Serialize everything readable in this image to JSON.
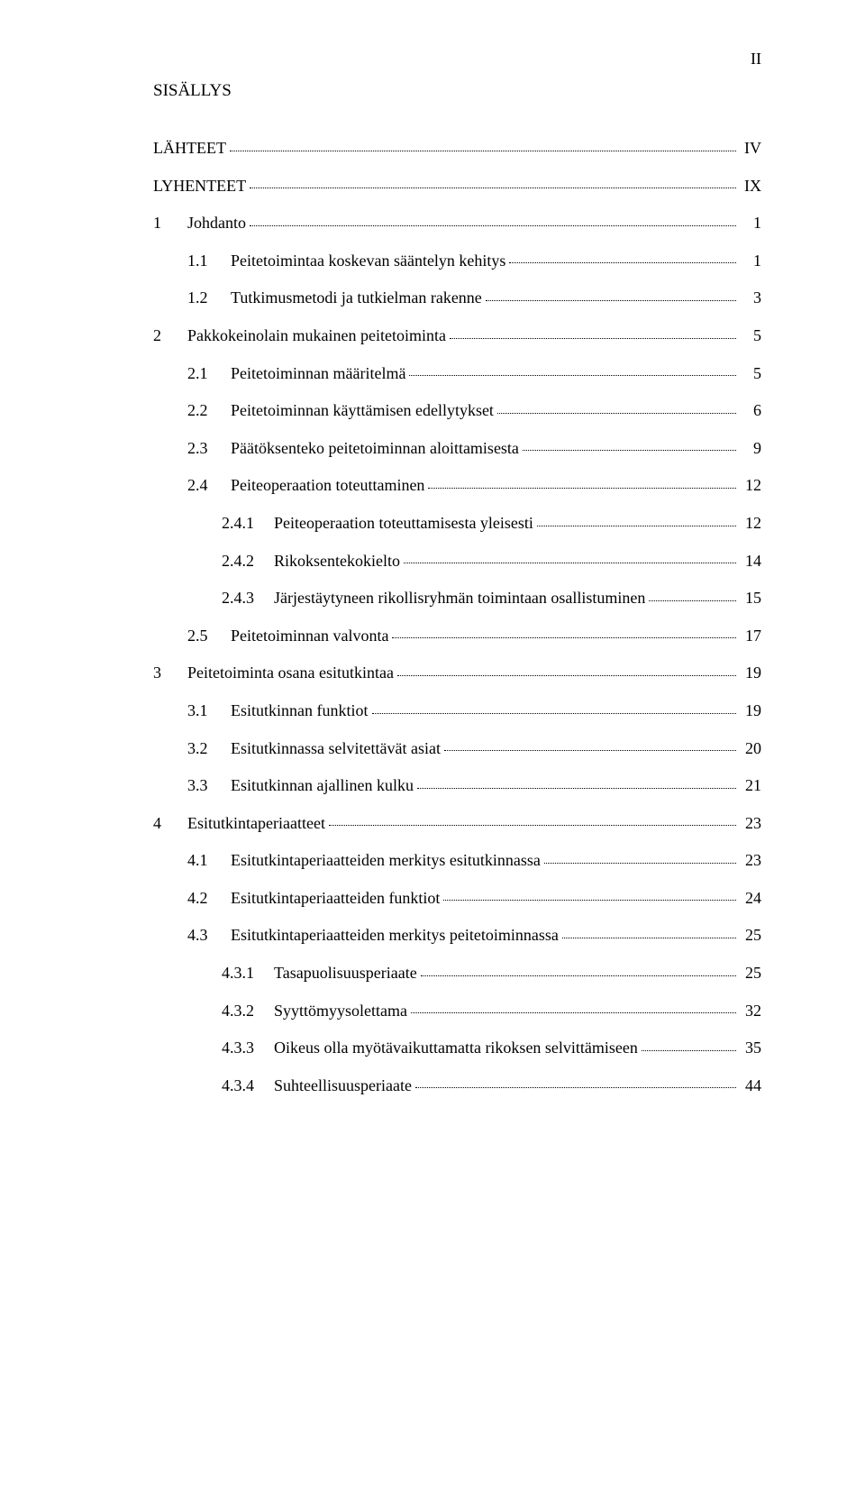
{
  "page_number_label": "II",
  "heading": "SISÄLLYS",
  "entries": [
    {
      "indent": 0,
      "num": "",
      "numClass": "",
      "label": "LÄHTEET",
      "page": "IV"
    },
    {
      "indent": 0,
      "num": "",
      "numClass": "",
      "label": "LYHENTEET",
      "page": "IX"
    },
    {
      "indent": 0,
      "num": "1",
      "numClass": "num-w1",
      "label": "Johdanto",
      "page": "1"
    },
    {
      "indent": 1,
      "num": "1.1",
      "numClass": "num-w2",
      "label": "Peitetoimintaa koskevan sääntelyn kehitys",
      "page": "1"
    },
    {
      "indent": 1,
      "num": "1.2",
      "numClass": "num-w2",
      "label": "Tutkimusmetodi ja tutkielman rakenne",
      "page": "3"
    },
    {
      "indent": 0,
      "num": "2",
      "numClass": "num-w1",
      "label": "Pakkokeinolain mukainen peitetoiminta",
      "page": "5"
    },
    {
      "indent": 1,
      "num": "2.1",
      "numClass": "num-w2",
      "label": "Peitetoiminnan määritelmä",
      "page": "5"
    },
    {
      "indent": 1,
      "num": "2.2",
      "numClass": "num-w2",
      "label": "Peitetoiminnan käyttämisen edellytykset",
      "page": "6"
    },
    {
      "indent": 1,
      "num": "2.3",
      "numClass": "num-w2",
      "label": "Päätöksenteko peitetoiminnan aloittamisesta",
      "page": "9"
    },
    {
      "indent": 1,
      "num": "2.4",
      "numClass": "num-w2",
      "label": "Peiteoperaation toteuttaminen",
      "page": "12"
    },
    {
      "indent": 2,
      "num": "2.4.1",
      "numClass": "num-w3",
      "label": "Peiteoperaation toteuttamisesta yleisesti",
      "page": "12"
    },
    {
      "indent": 2,
      "num": "2.4.2",
      "numClass": "num-w3",
      "label": "Rikoksentekokielto",
      "page": "14"
    },
    {
      "indent": 2,
      "num": "2.4.3",
      "numClass": "num-w3",
      "label": "Järjestäytyneen rikollisryhmän toimintaan osallistuminen",
      "page": "15"
    },
    {
      "indent": 1,
      "num": "2.5",
      "numClass": "num-w2",
      "label": "Peitetoiminnan valvonta",
      "page": "17"
    },
    {
      "indent": 0,
      "num": "3",
      "numClass": "num-w1",
      "label": "Peitetoiminta osana esitutkintaa",
      "page": "19"
    },
    {
      "indent": 1,
      "num": "3.1",
      "numClass": "num-w2",
      "label": "Esitutkinnan funktiot",
      "page": "19"
    },
    {
      "indent": 1,
      "num": "3.2",
      "numClass": "num-w2",
      "label": "Esitutkinnassa selvitettävät asiat",
      "page": "20"
    },
    {
      "indent": 1,
      "num": "3.3",
      "numClass": "num-w2",
      "label": "Esitutkinnan ajallinen kulku",
      "page": "21"
    },
    {
      "indent": 0,
      "num": "4",
      "numClass": "num-w1",
      "label": "Esitutkintaperiaatteet",
      "page": "23"
    },
    {
      "indent": 1,
      "num": "4.1",
      "numClass": "num-w2",
      "label": "Esitutkintaperiaatteiden merkitys esitutkinnassa",
      "page": "23"
    },
    {
      "indent": 1,
      "num": "4.2",
      "numClass": "num-w2",
      "label": "Esitutkintaperiaatteiden funktiot",
      "page": "24"
    },
    {
      "indent": 1,
      "num": "4.3",
      "numClass": "num-w2",
      "label": "Esitutkintaperiaatteiden merkitys peitetoiminnassa",
      "page": "25"
    },
    {
      "indent": 2,
      "num": "4.3.1",
      "numClass": "num-w3",
      "label": "Tasapuolisuusperiaate",
      "page": "25"
    },
    {
      "indent": 2,
      "num": "4.3.2",
      "numClass": "num-w3",
      "label": "Syyttömyysolettama",
      "page": "32"
    },
    {
      "indent": 2,
      "num": "4.3.3",
      "numClass": "num-w3",
      "label": "Oikeus olla myötävaikuttamatta rikoksen selvittämiseen",
      "page": "35"
    },
    {
      "indent": 2,
      "num": "4.3.4",
      "numClass": "num-w3",
      "label": "Suhteellisuusperiaate",
      "page": "44"
    }
  ]
}
